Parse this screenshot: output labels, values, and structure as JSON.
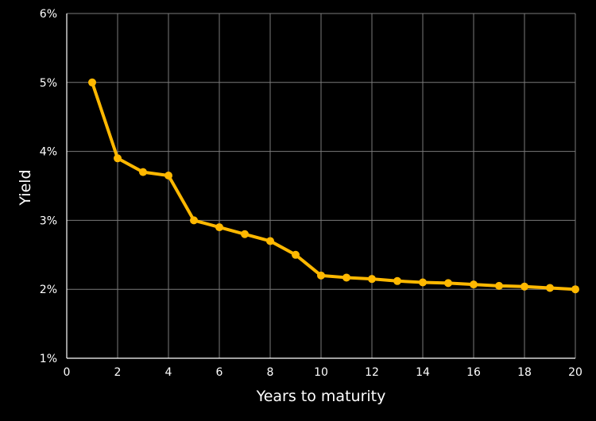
{
  "chart_data": {
    "type": "line",
    "title": "",
    "xlabel": "Years to maturity",
    "ylabel": "Yield",
    "xlim": [
      0,
      20
    ],
    "ylim": [
      1,
      6
    ],
    "xticks": [
      0,
      2,
      4,
      6,
      8,
      10,
      12,
      14,
      16,
      18,
      20
    ],
    "xtick_labels": [
      "0",
      "2",
      "4",
      "6",
      "8",
      "10",
      "12",
      "14",
      "16",
      "18",
      "20"
    ],
    "yticks": [
      1,
      2,
      3,
      4,
      5,
      6
    ],
    "ytick_labels": [
      "1%",
      "2%",
      "3%",
      "4%",
      "5%",
      "6%"
    ],
    "grid": true,
    "legend": "none",
    "colors": {
      "background": "#000000",
      "grid": "#7a7a7a",
      "line": "#FFB800",
      "text": "#ffffff"
    },
    "series": [
      {
        "x": [
          1,
          2,
          3,
          4,
          5,
          6,
          7,
          8,
          9,
          10,
          11,
          12,
          13,
          14,
          15,
          16,
          17,
          18,
          19,
          20
        ],
        "values": [
          5.0,
          3.9,
          3.7,
          3.65,
          3.0,
          2.9,
          2.8,
          2.7,
          2.5,
          2.2,
          2.17,
          2.15,
          2.12,
          2.1,
          2.09,
          2.07,
          2.05,
          2.04,
          2.02,
          2.0
        ]
      }
    ]
  }
}
